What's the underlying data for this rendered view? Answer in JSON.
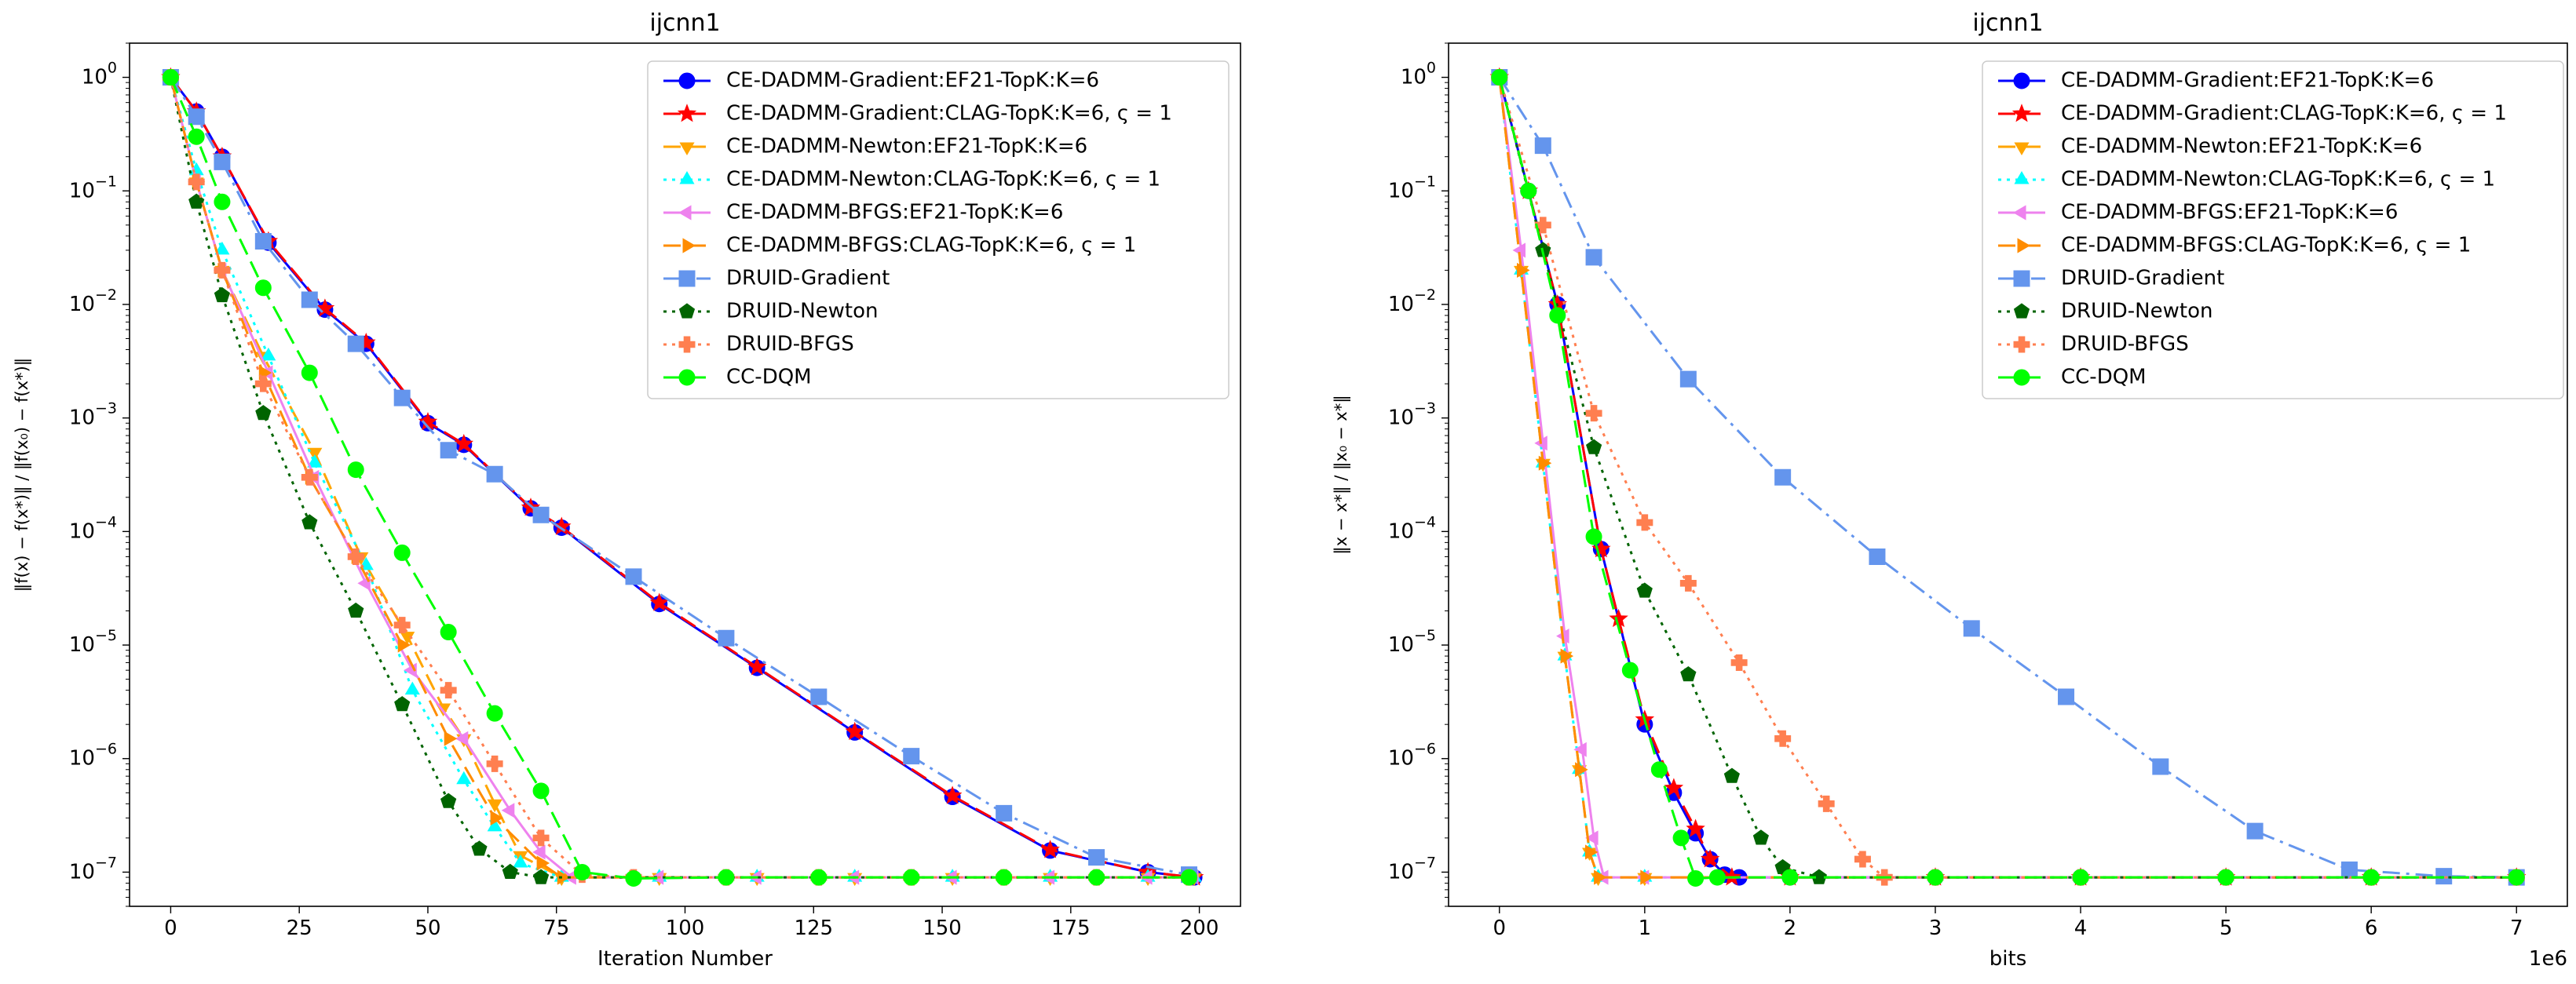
{
  "colors": {
    "ef21_gradient": "#0000ff",
    "clag_gradient": "#ff0000",
    "ef21_newton": "#ffa500",
    "clag_newton": "#00ffff",
    "ef21_bfgs": "#ee82ee",
    "clag_bfgs": "#ff8c00",
    "druid_gradient": "#6495ed",
    "druid_newton": "#006400",
    "druid_bfgs": "#ff7f50",
    "cc_dqm": "#00ff00"
  },
  "chart_data": [
    {
      "type": "line",
      "title": "ijcnn1",
      "xlabel": "Iteration Number",
      "ylabel": "‖f(x) − f(x*)‖ / ‖f(x₀) − f(x*)‖",
      "x_scale": "linear",
      "y_scale": "log",
      "xlim": [
        -8,
        208
      ],
      "ylim": [
        5e-08,
        2
      ],
      "x_ticks": [
        0,
        25,
        50,
        75,
        100,
        125,
        150,
        175,
        200
      ],
      "y_tick_exponents": [
        0,
        -1,
        -2,
        -3,
        -4,
        -5,
        -6,
        -7
      ],
      "x_offset_label": "",
      "grid": false,
      "legend_position": "top-right",
      "series": [
        {
          "name": "CE-DADMM-Gradient:EF21-TopK:K=6",
          "color_key": "ef21_gradient",
          "dash": "solid",
          "marker": "circle",
          "marker_every": 19,
          "x": [
            0,
            5,
            10,
            19,
            30,
            38,
            50,
            57,
            70,
            76,
            95,
            114,
            133,
            152,
            171,
            190,
            199
          ],
          "y": [
            1,
            0.5,
            0.2,
            0.035,
            0.009,
            0.0045,
            0.0009,
            0.00058,
            0.00016,
            0.000108,
            2.3e-05,
            6.3e-06,
            1.7e-06,
            4.6e-07,
            1.55e-07,
            1e-07,
            9e-08
          ]
        },
        {
          "name": "CE-DADMM-Gradient:CLAG-TopK:K=6, ς = 1",
          "color_key": "clag_gradient",
          "dash": "dashed",
          "marker": "star",
          "marker_every": 19,
          "x": [
            0,
            5,
            10,
            19,
            30,
            38,
            50,
            57,
            70,
            76,
            95,
            114,
            133,
            152,
            171,
            190,
            199
          ],
          "y": [
            1,
            0.5,
            0.2,
            0.036,
            0.0092,
            0.0046,
            0.00092,
            0.00059,
            0.000162,
            0.00011,
            2.35e-05,
            6.4e-06,
            1.72e-06,
            4.7e-07,
            1.57e-07,
            1e-07,
            9e-08
          ]
        },
        {
          "name": "CE-DADMM-Newton:EF21-TopK:K=6",
          "color_key": "ef21_newton",
          "dash": "dashed",
          "marker": "triangle-down",
          "marker_every": 19,
          "x": [
            0,
            5,
            10,
            18,
            28,
            37,
            46,
            53,
            57,
            63,
            68,
            76,
            95,
            114,
            133,
            152,
            171,
            190,
            199
          ],
          "y": [
            1,
            0.12,
            0.02,
            0.0035,
            0.0005,
            6e-05,
            1.2e-05,
            2.8e-06,
            1.5e-06,
            4e-07,
            1.4e-07,
            9e-08,
            9e-08,
            9e-08,
            9e-08,
            9e-08,
            9e-08,
            9e-08,
            9e-08
          ]
        },
        {
          "name": "CE-DADMM-Newton:CLAG-TopK:K=6, ς = 1",
          "color_key": "clag_newton",
          "dash": "dotted",
          "marker": "triangle-up",
          "marker_every": 19,
          "x": [
            0,
            5,
            10,
            19,
            28,
            38,
            47,
            57,
            63,
            68,
            76,
            95,
            114,
            133,
            152,
            171,
            190,
            199
          ],
          "y": [
            1,
            0.15,
            0.03,
            0.0035,
            0.0004,
            5e-05,
            4e-06,
            6.5e-07,
            2.5e-07,
            1.2e-07,
            9e-08,
            9e-08,
            9e-08,
            9e-08,
            9e-08,
            9e-08,
            9e-08,
            9e-08
          ]
        },
        {
          "name": "CE-DADMM-BFGS:EF21-TopK:K=6",
          "color_key": "ef21_bfgs",
          "dash": "solid",
          "marker": "triangle-left",
          "marker_every": 19,
          "x": [
            0,
            5,
            10,
            19,
            28,
            38,
            47,
            57,
            66,
            72,
            78,
            95,
            114,
            133,
            152,
            171,
            190,
            199
          ],
          "y": [
            1,
            0.12,
            0.02,
            0.0025,
            0.0003,
            3.5e-05,
            6e-06,
            1.5e-06,
            3.5e-07,
            1.5e-07,
            9e-08,
            9e-08,
            9e-08,
            9e-08,
            9e-08,
            9e-08,
            9e-08,
            9e-08
          ]
        },
        {
          "name": "CE-DADMM-BFGS:CLAG-TopK:K=6, ς = 1",
          "color_key": "clag_bfgs",
          "dash": "dashed",
          "marker": "triangle-right",
          "marker_every": 18,
          "x": [
            0,
            5,
            10,
            18,
            27,
            36,
            45,
            54,
            63,
            72,
            76,
            90,
            108,
            126,
            144,
            162,
            180,
            198
          ],
          "y": [
            1,
            0.12,
            0.02,
            0.0025,
            0.0003,
            6e-05,
            1e-05,
            1.5e-06,
            3e-07,
            1.2e-07,
            9e-08,
            9e-08,
            9e-08,
            9e-08,
            9e-08,
            9e-08,
            9e-08,
            9e-08
          ]
        },
        {
          "name": "DRUID-Gradient",
          "color_key": "druid_gradient",
          "dash": "dashdot",
          "marker": "square",
          "marker_every": 18,
          "x": [
            0,
            5,
            10,
            18,
            27,
            36,
            45,
            54,
            63,
            72,
            90,
            108,
            126,
            144,
            162,
            180,
            198
          ],
          "y": [
            1,
            0.45,
            0.18,
            0.036,
            0.011,
            0.0045,
            0.0015,
            0.00052,
            0.00032,
            0.00014,
            4e-05,
            1.15e-05,
            3.5e-06,
            1.05e-06,
            3.3e-07,
            1.35e-07,
            9.5e-08
          ]
        },
        {
          "name": "DRUID-Newton",
          "color_key": "druid_newton",
          "dash": "dotted",
          "marker": "pentagon",
          "marker_every": 18,
          "x": [
            0,
            5,
            10,
            18,
            27,
            36,
            45,
            54,
            60,
            66,
            72,
            90,
            108,
            126,
            144,
            162,
            180,
            198
          ],
          "y": [
            1,
            0.08,
            0.012,
            0.0011,
            0.00012,
            2e-05,
            3e-06,
            4.2e-07,
            1.6e-07,
            1e-07,
            9e-08,
            9e-08,
            9e-08,
            9e-08,
            9e-08,
            9e-08,
            9e-08,
            9e-08
          ]
        },
        {
          "name": "DRUID-BFGS",
          "color_key": "druid_bfgs",
          "dash": "dotted",
          "marker": "plus",
          "marker_every": 18,
          "x": [
            0,
            5,
            10,
            18,
            27,
            36,
            45,
            54,
            63,
            72,
            80,
            90,
            108,
            126,
            144,
            162,
            180,
            198
          ],
          "y": [
            1,
            0.12,
            0.02,
            0.002,
            0.0003,
            6e-05,
            1.5e-05,
            4e-06,
            9e-07,
            2e-07,
            9.5e-08,
            9e-08,
            9e-08,
            9e-08,
            9e-08,
            9e-08,
            9e-08,
            9e-08
          ]
        },
        {
          "name": "CC-DQM",
          "color_key": "cc_dqm",
          "dash": "dashed",
          "marker": "circle",
          "marker_every": 18,
          "x": [
            0,
            5,
            10,
            18,
            27,
            36,
            45,
            54,
            63,
            72,
            80,
            90,
            108,
            126,
            144,
            162,
            180,
            198
          ],
          "y": [
            1,
            0.3,
            0.08,
            0.014,
            0.0025,
            0.00035,
            6.5e-05,
            1.3e-05,
            2.5e-06,
            5.2e-07,
            1e-07,
            8.8e-08,
            9e-08,
            9e-08,
            9e-08,
            9e-08,
            9e-08,
            9e-08
          ]
        }
      ]
    },
    {
      "type": "line",
      "title": "ijcnn1",
      "xlabel": "bits",
      "ylabel": "‖x − x*‖ / ‖x₀ − x*‖",
      "x_scale": "linear",
      "y_scale": "log",
      "xlim": [
        -350000,
        7350000
      ],
      "ylim": [
        5e-08,
        2
      ],
      "x_ticks": [
        0,
        1000000,
        2000000,
        3000000,
        4000000,
        5000000,
        6000000,
        7000000
      ],
      "x_tick_labels": [
        "0",
        "1",
        "2",
        "3",
        "4",
        "5",
        "6",
        "7"
      ],
      "y_tick_exponents": [
        0,
        -1,
        -2,
        -3,
        -4,
        -5,
        -6,
        -7
      ],
      "x_offset_label": "1e6",
      "grid": false,
      "legend_position": "top-right",
      "series": [
        {
          "name": "CE-DADMM-Gradient:EF21-TopK:K=6",
          "color_key": "ef21_gradient",
          "dash": "solid",
          "marker": "circle",
          "x": [
            0,
            200000,
            400000,
            700000,
            1000000,
            1200000,
            1350000,
            1450000,
            1550000,
            1650000,
            2000000,
            3000000,
            4000000,
            5000000,
            6000000,
            7000000
          ],
          "y": [
            1,
            0.1,
            0.01,
            7e-05,
            2e-06,
            5e-07,
            2.2e-07,
            1.3e-07,
            9.5e-08,
            9e-08,
            9e-08,
            9e-08,
            9e-08,
            9e-08,
            9e-08,
            9e-08
          ]
        },
        {
          "name": "CE-DADMM-Gradient:CLAG-TopK:K=6, ς = 1",
          "color_key": "clag_gradient",
          "dash": "dashed",
          "marker": "star",
          "x": [
            0,
            200000,
            400000,
            700000,
            820000,
            1000000,
            1200000,
            1350000,
            1450000,
            1600000,
            2000000,
            3000000,
            4000000,
            5000000,
            6000000,
            7000000
          ],
          "y": [
            1,
            0.1,
            0.01,
            7e-05,
            1.7e-05,
            2.2e-06,
            5.5e-07,
            2.4e-07,
            1.3e-07,
            9e-08,
            9e-08,
            9e-08,
            9e-08,
            9e-08,
            9e-08,
            9e-08
          ]
        },
        {
          "name": "CE-DADMM-Newton:EF21-TopK:K=6",
          "color_key": "ef21_newton",
          "dash": "dashed",
          "marker": "triangle-down",
          "x": [
            0,
            150000,
            300000,
            450000,
            550000,
            620000,
            680000,
            1000000,
            2000000,
            3000000,
            4000000,
            5000000,
            6000000,
            7000000
          ],
          "y": [
            1,
            0.02,
            0.0004,
            8e-06,
            8e-07,
            1.5e-07,
            9e-08,
            9e-08,
            9e-08,
            9e-08,
            9e-08,
            9e-08,
            9e-08,
            9e-08
          ]
        },
        {
          "name": "CE-DADMM-Newton:CLAG-TopK:K=6, ς = 1",
          "color_key": "clag_newton",
          "dash": "dotted",
          "marker": "triangle-up",
          "x": [
            0,
            150000,
            300000,
            450000,
            550000,
            620000,
            680000,
            1000000,
            2000000,
            3000000,
            4000000,
            5000000,
            6000000,
            7000000
          ],
          "y": [
            1,
            0.02,
            0.0004,
            8e-06,
            8e-07,
            1.5e-07,
            9e-08,
            9e-08,
            9e-08,
            9e-08,
            9e-08,
            9e-08,
            9e-08,
            9e-08
          ]
        },
        {
          "name": "CE-DADMM-BFGS:EF21-TopK:K=6",
          "color_key": "ef21_bfgs",
          "dash": "solid",
          "marker": "triangle-left",
          "x": [
            0,
            150000,
            300000,
            450000,
            570000,
            650000,
            720000,
            1000000,
            2000000,
            3000000,
            4000000,
            5000000,
            6000000,
            7000000
          ],
          "y": [
            1,
            0.03,
            0.0006,
            1.2e-05,
            1.2e-06,
            2e-07,
            9e-08,
            9e-08,
            9e-08,
            9e-08,
            9e-08,
            9e-08,
            9e-08,
            9e-08
          ]
        },
        {
          "name": "CE-DADMM-BFGS:CLAG-TopK:K=6, ς = 1",
          "color_key": "clag_bfgs",
          "dash": "dashed",
          "marker": "triangle-right",
          "x": [
            0,
            150000,
            300000,
            450000,
            550000,
            620000,
            680000,
            1000000,
            2000000,
            3000000,
            4000000,
            5000000,
            6000000,
            7000000
          ],
          "y": [
            1,
            0.02,
            0.0004,
            8e-06,
            8e-07,
            1.5e-07,
            9e-08,
            9e-08,
            9e-08,
            9e-08,
            9e-08,
            9e-08,
            9e-08,
            9e-08
          ]
        },
        {
          "name": "DRUID-Gradient",
          "color_key": "druid_gradient",
          "dash": "dashdot",
          "marker": "square",
          "x": [
            0,
            300000,
            650000,
            1300000,
            1950000,
            2600000,
            3250000,
            3900000,
            4550000,
            5200000,
            5850000,
            6500000,
            7000000
          ],
          "y": [
            1,
            0.25,
            0.026,
            0.0022,
            0.0003,
            6e-05,
            1.4e-05,
            3.5e-06,
            8.5e-07,
            2.3e-07,
            1.05e-07,
            9.2e-08,
            9e-08
          ]
        },
        {
          "name": "DRUID-Newton",
          "color_key": "druid_newton",
          "dash": "dotted",
          "marker": "pentagon",
          "x": [
            0,
            300000,
            650000,
            1000000,
            1300000,
            1600000,
            1800000,
            1950000,
            2200000,
            3000000,
            4000000,
            5000000,
            6000000,
            7000000
          ],
          "y": [
            1,
            0.03,
            0.00055,
            3e-05,
            5.5e-06,
            7e-07,
            2e-07,
            1.1e-07,
            9e-08,
            9e-08,
            9e-08,
            9e-08,
            9e-08,
            9e-08
          ]
        },
        {
          "name": "DRUID-BFGS",
          "color_key": "druid_bfgs",
          "dash": "dotted",
          "marker": "plus",
          "x": [
            0,
            300000,
            650000,
            1000000,
            1300000,
            1650000,
            1950000,
            2250000,
            2500000,
            2650000,
            3000000,
            4000000,
            5000000,
            6000000,
            7000000
          ],
          "y": [
            1,
            0.05,
            0.0011,
            0.00012,
            3.5e-05,
            7e-06,
            1.5e-06,
            4e-07,
            1.3e-07,
            9e-08,
            9e-08,
            9e-08,
            9e-08,
            9e-08,
            9e-08
          ]
        },
        {
          "name": "CC-DQM",
          "color_key": "cc_dqm",
          "dash": "dashed",
          "marker": "circle",
          "x": [
            0,
            200000,
            400000,
            650000,
            900000,
            1100000,
            1250000,
            1350000,
            1500000,
            2000000,
            3000000,
            4000000,
            5000000,
            6000000,
            7000000
          ],
          "y": [
            1,
            0.1,
            0.008,
            9e-05,
            6e-06,
            8e-07,
            2e-07,
            8.8e-08,
            9e-08,
            9e-08,
            9e-08,
            9e-08,
            9e-08,
            9e-08,
            9e-08
          ]
        }
      ]
    }
  ]
}
